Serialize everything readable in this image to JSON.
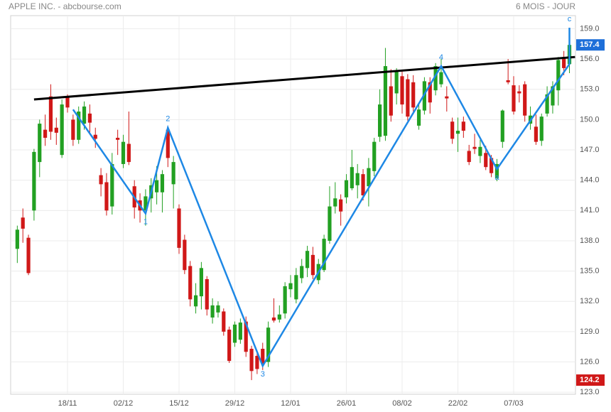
{
  "chart_data": {
    "type": "candlestick",
    "title": "APPLE INC. - abcbourse.com",
    "subtitle": "6 MOIS - JOUR",
    "categories": [
      null,
      null,
      null,
      null,
      null,
      null,
      null,
      null,
      null,
      "18/11",
      null,
      null,
      null,
      null,
      null,
      null,
      null,
      null,
      null,
      "02/12",
      null,
      null,
      null,
      null,
      null,
      null,
      null,
      null,
      null,
      "15/12",
      null,
      null,
      null,
      null,
      null,
      null,
      null,
      null,
      null,
      "29/12",
      null,
      null,
      null,
      null,
      null,
      null,
      null,
      null,
      null,
      "12/01",
      null,
      null,
      null,
      null,
      null,
      null,
      null,
      null,
      null,
      "26/01",
      null,
      null,
      null,
      null,
      null,
      null,
      null,
      null,
      null,
      "08/02",
      null,
      null,
      null,
      null,
      null,
      null,
      null,
      null,
      null,
      "22/02",
      null,
      null,
      null,
      null,
      null,
      null,
      null,
      null,
      null,
      "07/03",
      null,
      null,
      null,
      null,
      null,
      null,
      null,
      null,
      null,
      null
    ],
    "open": [
      137.2,
      140.3,
      138.3,
      141,
      145.8,
      149,
      152.3,
      149.2,
      146.5,
      152.3,
      150,
      148,
      149.6,
      150.6,
      148.5,
      144.5,
      143.8,
      141.4,
      148.2,
      145.6,
      147.6,
      143.4,
      142,
      141,
      142.2,
      142.8,
      142.8,
      149,
      143.6,
      141.2,
      138.1,
      135.5,
      131.5,
      132.5,
      134.2,
      130.4,
      130.9,
      131,
      129.2,
      127.9,
      128.2,
      130,
      127.3,
      126.6,
      127.3,
      126,
      130.4,
      130.2,
      130.8,
      133.2,
      132.2,
      134.3,
      135.3,
      136.6,
      134.1,
      135.1,
      138,
      141.4,
      142.1,
      142.3,
      143.2,
      143.5,
      144.6,
      143.4,
      144.9,
      148.3,
      148.4,
      153.3,
      152.6,
      154.3,
      154,
      153.7,
      149.4,
      150.9,
      153.7,
      152.9,
      153.5,
      152.3,
      149.8,
      148.6,
      149.8,
      146.9,
      147.3,
      146.4,
      146.7,
      146.2,
      144.2,
      147.8,
      153.9,
      153.4,
      152.8,
      153.5,
      149.6,
      149.3,
      147.9,
      150.6,
      151.4,
      152.9,
      156.2,
      155.5
    ],
    "high": [
      139.5,
      141.2,
      138.6,
      147.1,
      150,
      150.5,
      153.5,
      150.2,
      152,
      152.5,
      150.5,
      151.3,
      151.8,
      151.5,
      149.2,
      145.2,
      144.7,
      146.7,
      149,
      148.5,
      150.8,
      144,
      142.7,
      143.1,
      144.2,
      145.4,
      145,
      149.3,
      146.4,
      141.6,
      138.6,
      136,
      133.8,
      135.9,
      134.5,
      132.3,
      132,
      131.3,
      129.5,
      130,
      130.3,
      130.5,
      127.6,
      127,
      127.9,
      130,
      132.3,
      131.6,
      133.9,
      134.6,
      135.3,
      136.2,
      137.5,
      137.4,
      136.2,
      138.6,
      143.4,
      143.8,
      142.6,
      144.6,
      147,
      145.6,
      145.1,
      146.2,
      148.2,
      153,
      157.1,
      155,
      155.1,
      154.8,
      154.5,
      154.4,
      151.6,
      154.2,
      154.2,
      155.6,
      156,
      153.3,
      150.2,
      150.2,
      150.3,
      147.5,
      148.6,
      148,
      147.4,
      146.5,
      146.1,
      151,
      156,
      154.3,
      153.4,
      153.8,
      151.3,
      150.5,
      150.6,
      153.3,
      153.8,
      156.2,
      156.8,
      157.6
    ],
    "low": [
      135.8,
      137.8,
      134.6,
      140,
      144.3,
      147.4,
      148,
      147.5,
      146.2,
      150.7,
      147.4,
      147.6,
      149,
      148.6,
      147.2,
      142.4,
      140.5,
      140.6,
      146.5,
      145.2,
      145.5,
      140.2,
      139.8,
      139.5,
      140.8,
      141.6,
      140.8,
      145.3,
      141.2,
      136.7,
      134.7,
      131.5,
      130.8,
      131.2,
      130.6,
      129.8,
      130.4,
      128.6,
      125.9,
      127.5,
      127.8,
      126.5,
      124.2,
      124.8,
      125.2,
      125.5,
      129.9,
      129.9,
      130.3,
      132.4,
      131.8,
      133.8,
      134.4,
      134.2,
      133.7,
      134.9,
      137.7,
      140.7,
      139.5,
      141.7,
      143,
      142.2,
      142,
      141.4,
      144.4,
      147.8,
      147.9,
      149.8,
      151.5,
      150.6,
      149.9,
      150.8,
      149,
      150.5,
      150.6,
      152.4,
      153.2,
      150.8,
      147.6,
      146.8,
      148.2,
      145.5,
      146.6,
      145.7,
      145,
      144.3,
      143.9,
      147.2,
      153.5,
      150.5,
      151.7,
      149.8,
      149,
      147.5,
      147.4,
      150.3,
      150.6,
      151.4,
      154.4,
      154.6
    ],
    "close": [
      139.1,
      139.2,
      134.8,
      146.8,
      149.6,
      148.2,
      148.8,
      148.7,
      151.5,
      151.2,
      148,
      150.8,
      151.3,
      149.7,
      148.1,
      143.6,
      141,
      145.6,
      148,
      147.8,
      145.8,
      141.3,
      141,
      142.4,
      143.5,
      144,
      144.6,
      146.2,
      145.8,
      137.3,
      135.1,
      132.2,
      132.6,
      135.3,
      131.2,
      131.6,
      131.6,
      129,
      126.1,
      129.7,
      129.9,
      127,
      125.1,
      125.3,
      125.8,
      129.4,
      130.1,
      130.7,
      133.5,
      133.8,
      134.6,
      135.5,
      137,
      134.6,
      135.7,
      138.2,
      141.4,
      142.2,
      140.9,
      144,
      145.3,
      144.7,
      142.5,
      145.2,
      147.8,
      151.5,
      155.3,
      150.4,
      154.8,
      151.5,
      150.3,
      151.2,
      151,
      153.8,
      151.7,
      155.3,
      154.7,
      152.1,
      148.1,
      148.9,
      148.9,
      145.8,
      147.1,
      147.3,
      145.3,
      144.7,
      145.6,
      150.9,
      153.7,
      150.8,
      152.6,
      150.4,
      150.4,
      147.8,
      150.3,
      152.5,
      153.3,
      155.9,
      155.1,
      157.4
    ],
    "up_color": "#22a022",
    "down_color": "#d01818",
    "ylim": [
      122.8,
      160.3
    ],
    "yticks": [
      {
        "value": 123,
        "label": "123.0"
      },
      {
        "value": 126,
        "label": "126.0"
      },
      {
        "value": 129,
        "label": "129.0"
      },
      {
        "value": 132,
        "label": "132.0"
      },
      {
        "value": 135,
        "label": "135.0"
      },
      {
        "value": 138,
        "label": "138.0"
      },
      {
        "value": 141,
        "label": "141.0"
      },
      {
        "value": 144,
        "label": "144.0"
      },
      {
        "value": 147,
        "label": "147.0"
      },
      {
        "value": 150,
        "label": "150.0"
      },
      {
        "value": 153,
        "label": "153.0"
      },
      {
        "value": 156,
        "label": "156.0"
      },
      {
        "value": 159,
        "label": "159.0"
      }
    ],
    "grid": true,
    "trendline": {
      "color": "#000000",
      "x": [
        3,
        100
      ],
      "y": [
        152.0,
        156.2
      ]
    },
    "wave": {
      "color": "#1e88e5",
      "x": [
        10,
        23,
        27,
        44,
        76,
        86,
        99,
        99
      ],
      "y": [
        151.0,
        140.7,
        149.2,
        125.6,
        155.3,
        145.1,
        155.5,
        159.1
      ],
      "labels": [
        null,
        "1",
        "2",
        "3",
        "4",
        "a",
        null,
        "c"
      ]
    },
    "last_color": "#1e6fd9"
  }
}
